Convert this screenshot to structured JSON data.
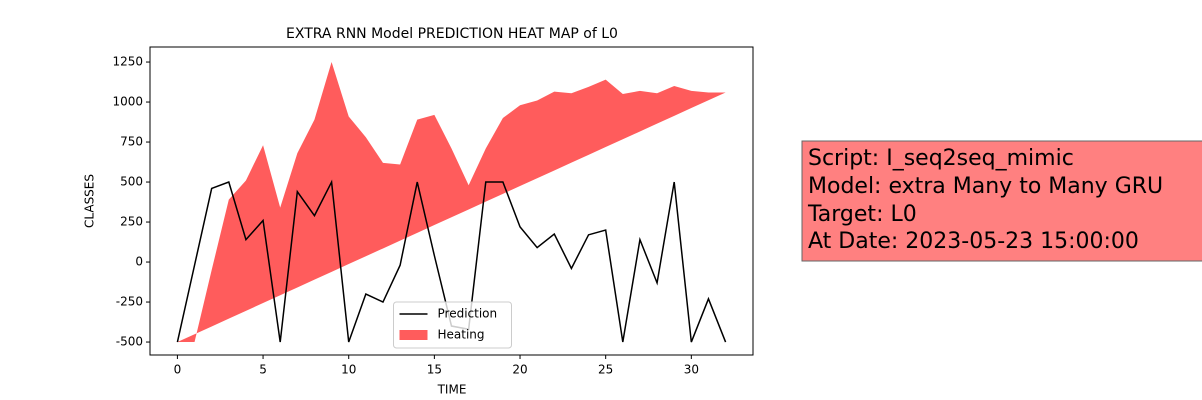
{
  "chart_data": {
    "type": "line",
    "title": "EXTRA RNN Model PREDICTION HEAT MAP of L0",
    "x_label": "TIME",
    "y_label": "CLASSES",
    "x": [
      0,
      1,
      2,
      3,
      4,
      5,
      6,
      7,
      8,
      9,
      10,
      11,
      12,
      13,
      14,
      15,
      16,
      17,
      18,
      19,
      20,
      21,
      22,
      23,
      24,
      25,
      26,
      27,
      28,
      29,
      30,
      31,
      32
    ],
    "series": [
      {
        "name": "Prediction",
        "color": "#000000",
        "kind": "line",
        "values": [
          -500,
          -20,
          460,
          500,
          140,
          260,
          -500,
          440,
          290,
          500,
          -500,
          -200,
          -250,
          -20,
          500,
          40,
          -400,
          -420,
          500,
          500,
          220,
          90,
          175,
          -40,
          170,
          200,
          -500,
          140,
          -130,
          500,
          -500,
          -230,
          -500
        ]
      },
      {
        "name": "Heating",
        "color": "#ff3333",
        "kind": "fill",
        "values": [
          -500,
          -500,
          -50,
          390,
          510,
          730,
          340,
          680,
          890,
          1250,
          910,
          780,
          620,
          610,
          890,
          920,
          710,
          480,
          710,
          900,
          980,
          1010,
          1065,
          1055,
          1095,
          1140,
          1050,
          1070,
          1055,
          1100,
          1070,
          1060,
          1060
        ],
        "lower": [
          -500,
          -451.25,
          -402.5,
          -353.75,
          -305,
          -256.25,
          -207.5,
          -158.75,
          -110,
          -61.25,
          -12.5,
          36.25,
          85,
          133.75,
          182.5,
          231.25,
          280,
          328.75,
          377.5,
          426.25,
          475,
          523.75,
          572.5,
          621.25,
          670,
          718.75,
          767.5,
          816.25,
          865,
          913.75,
          962.5,
          1011.25,
          1060
        ]
      }
    ],
    "xlim": [
      -1.6,
      33.6
    ],
    "xticks": [
      0,
      5,
      10,
      15,
      20,
      25,
      30
    ],
    "ylim": [
      -581,
      1344
    ],
    "yticks": [
      -500,
      -250,
      0,
      250,
      500,
      750,
      1000,
      1250
    ],
    "legend": "lower center"
  },
  "textbox": {
    "lines": [
      "Script: I_seq2seq_mimic",
      "Model: extra Many to Many GRU",
      "Target: L0",
      "At Date: 2023-05-23 15:00:00"
    ]
  }
}
